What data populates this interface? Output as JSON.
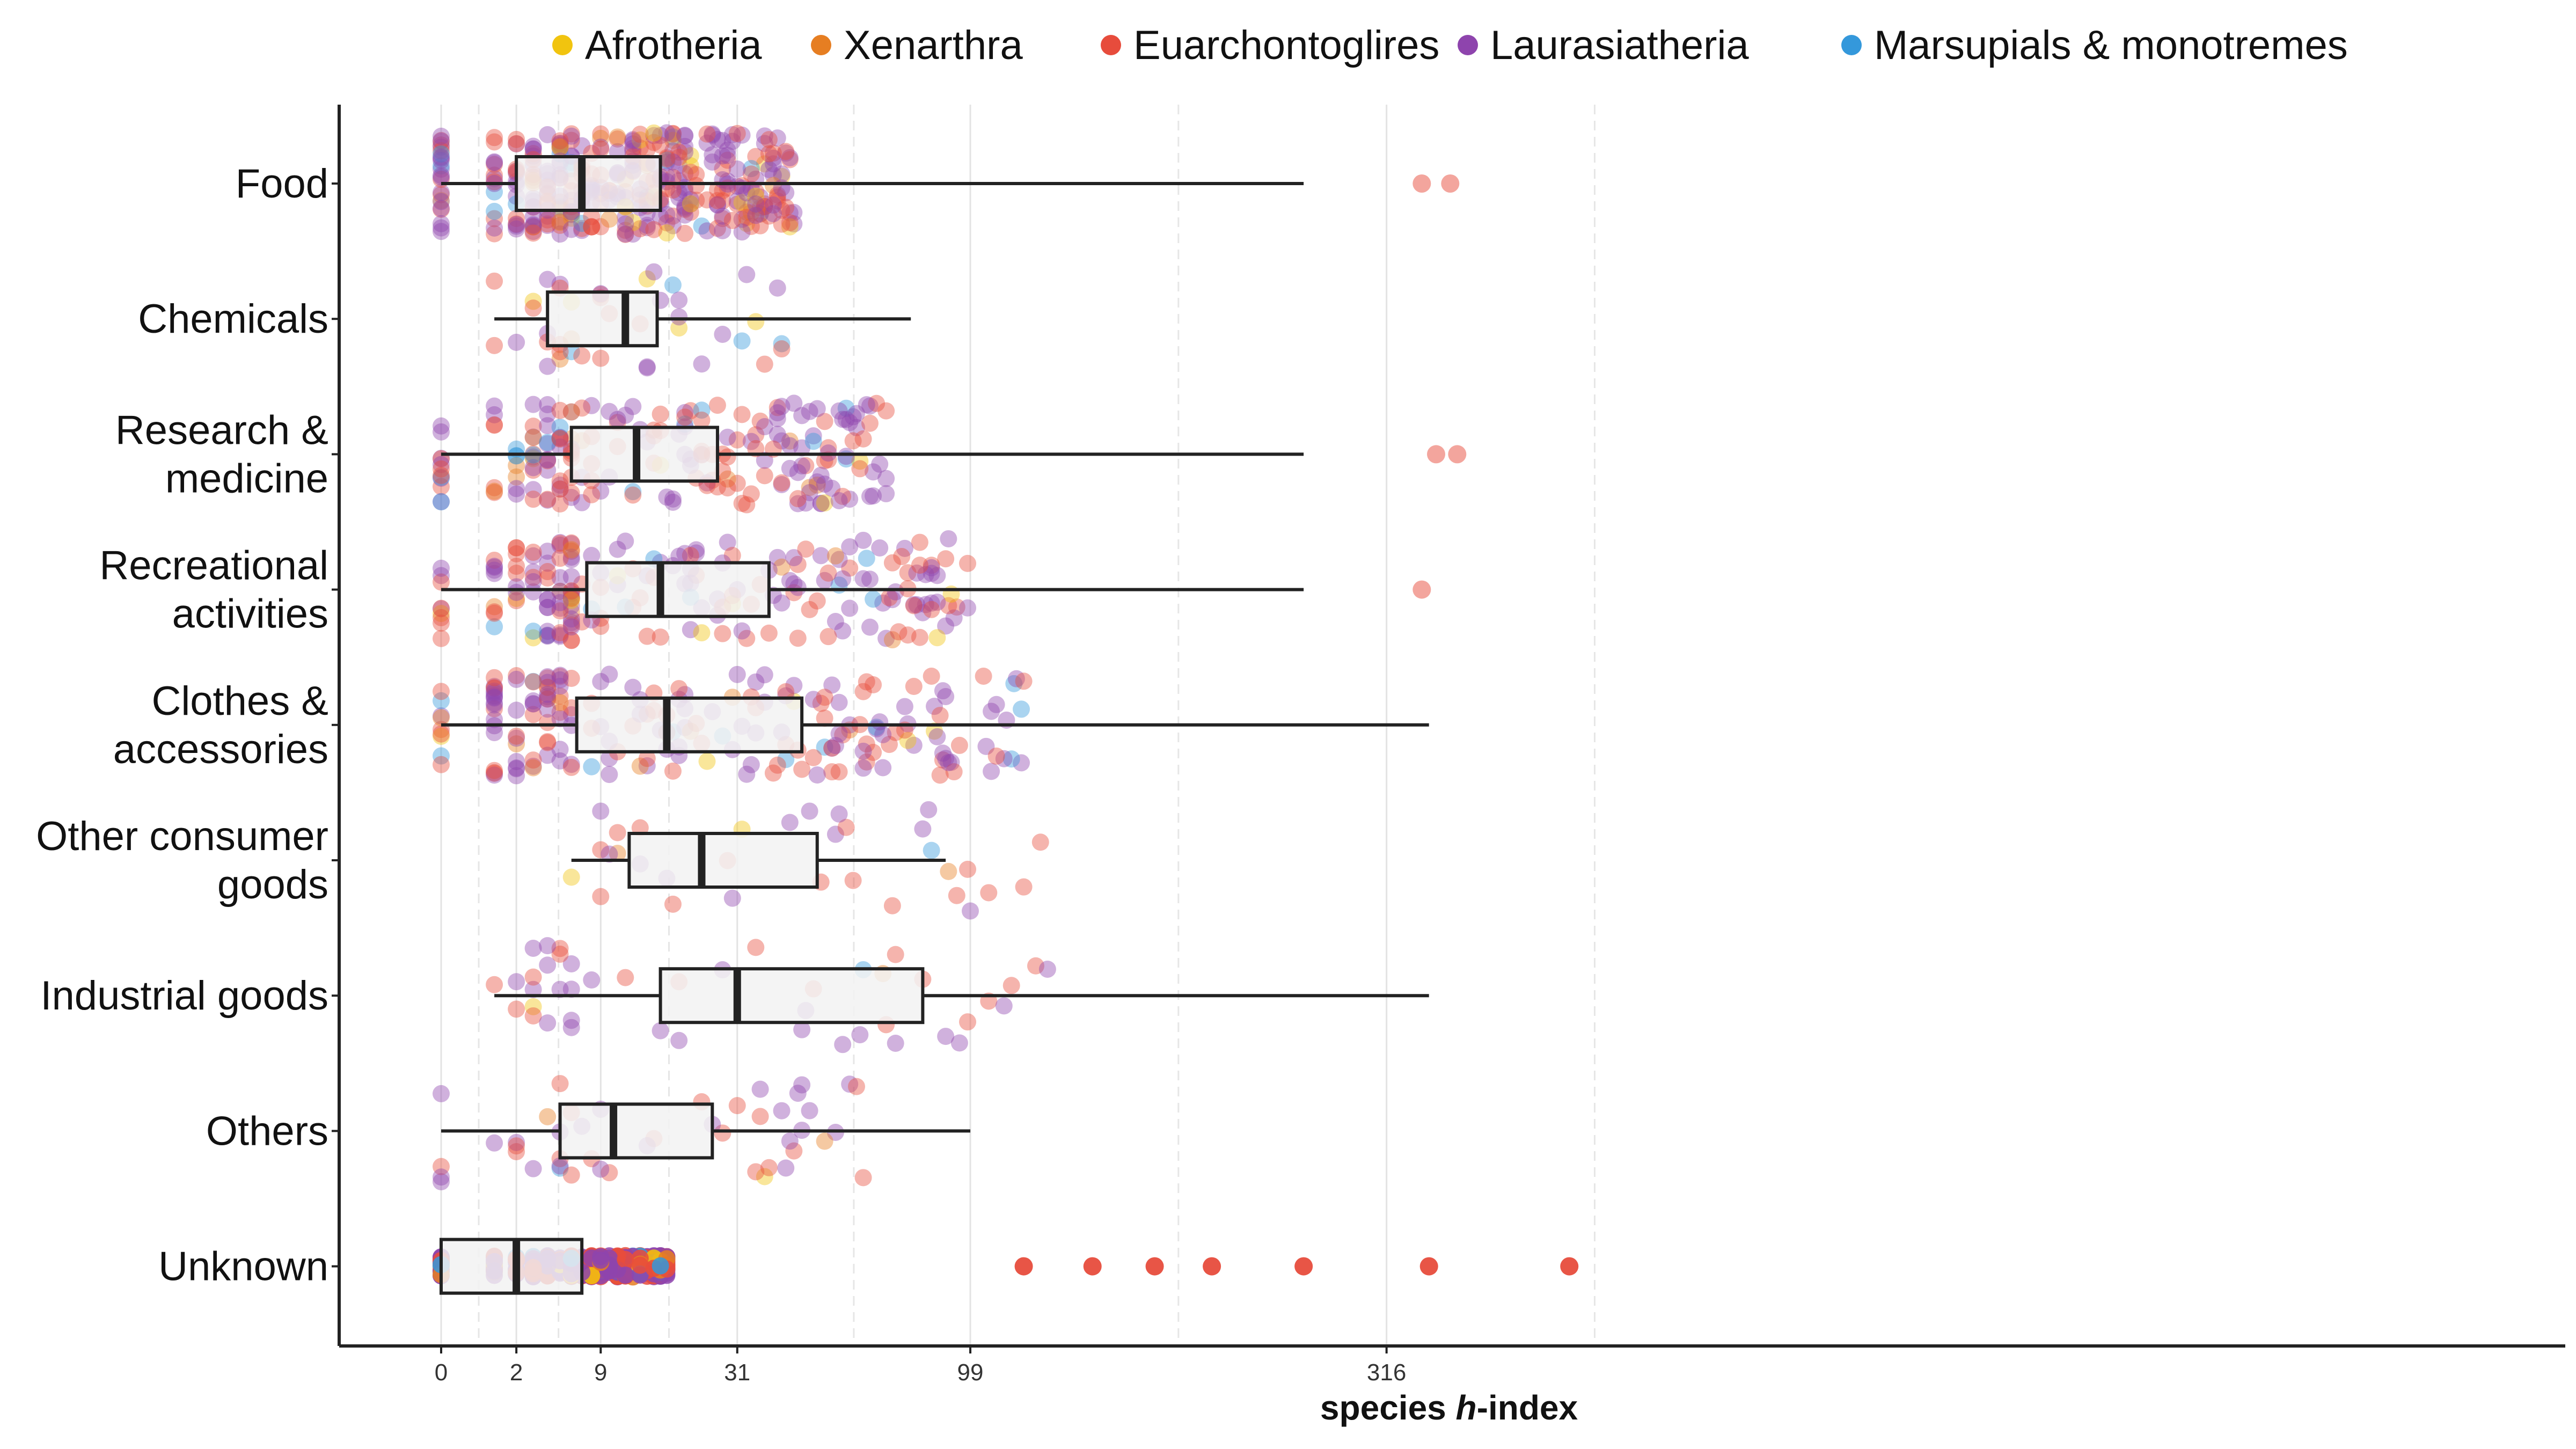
{
  "chart_data": {
    "type": "boxplot",
    "orientation": "horizontal",
    "x_label_parts": [
      "species ",
      "h",
      "-index"
    ],
    "x_scale": "square-root",
    "x_ticks": [
      0,
      2,
      9,
      31,
      99,
      316
    ],
    "xlim": [
      -2,
      540
    ],
    "grid_x": "vertical major and minor gridlines",
    "legend_position": "top",
    "legend": [
      {
        "name": "Afrotheria",
        "color": "#F1C40F"
      },
      {
        "name": "Xenarthra",
        "color": "#E67E22"
      },
      {
        "name": "Euarchontoglires",
        "color": "#E74C3C"
      },
      {
        "name": "Laurasiatheria",
        "color": "#8E44AD"
      },
      {
        "name": "Marsupials & monotremes",
        "color": "#3498DB"
      }
    ],
    "categories": [
      {
        "label": [
          "Food"
        ],
        "whisker_low": 0,
        "q1": 2,
        "median": 7,
        "q3": 17,
        "whisker_high": 263,
        "outliers": [
          340,
          360
        ]
      },
      {
        "label": [
          "Chemicals"
        ],
        "whisker_low": 1,
        "q1": 4,
        "median": 12,
        "q3": 16.5,
        "whisker_high": 78,
        "outliers": []
      },
      {
        "label": [
          "Research &",
          "medicine"
        ],
        "whisker_low": 0,
        "q1": 6,
        "median": 13.5,
        "q3": 27,
        "whisker_high": 263,
        "outliers": [
          350,
          365
        ]
      },
      {
        "label": [
          "Recreational",
          "activities"
        ],
        "whisker_low": 0,
        "q1": 7.5,
        "median": 17,
        "q3": 38,
        "whisker_high": 263,
        "outliers": [
          340
        ]
      },
      {
        "label": [
          "Clothes &",
          "accessories"
        ],
        "whisker_low": 0,
        "q1": 6.5,
        "median": 18,
        "q3": 46,
        "whisker_high": 345,
        "outliers": []
      },
      {
        "label": [
          "Other consumer",
          "goods"
        ],
        "whisker_low": 6,
        "q1": 12.5,
        "median": 24,
        "q3": 50,
        "whisker_high": 90,
        "outliers": []
      },
      {
        "label": [
          "Industrial goods"
        ],
        "whisker_low": 1,
        "q1": 17,
        "median": 31,
        "q3": 82,
        "whisker_high": 345,
        "outliers": []
      },
      {
        "label": [
          "Others"
        ],
        "whisker_low": 0,
        "q1": 5,
        "median": 10.5,
        "q3": 26,
        "whisker_high": 99,
        "outliers": []
      },
      {
        "label": [
          "Unknown"
        ],
        "whisker_low": 0,
        "q1": 0,
        "median": 2,
        "q3": 7,
        "whisker_high": 7,
        "outliers": [
          120,
          150,
          180,
          210,
          263,
          345,
          450
        ]
      }
    ]
  }
}
